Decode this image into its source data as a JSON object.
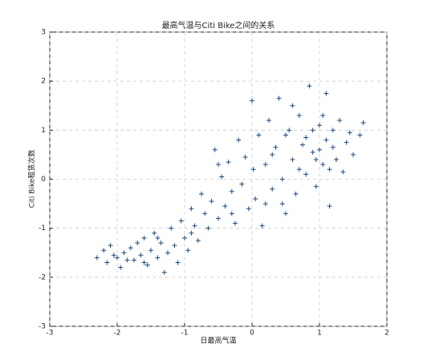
{
  "chart_data": {
    "type": "scatter",
    "title": "最高气温与Citi Bike之间的关系",
    "x_label": "日最高气温",
    "y_label": "Citi Bike租赁次数",
    "color": "#1f4a7a",
    "grid": true,
    "xlim": [
      -3,
      2
    ],
    "ylim": [
      -3,
      3
    ],
    "xticks": [
      -3,
      -2,
      -1,
      0,
      1,
      2
    ],
    "yticks": [
      -3,
      -2,
      -1,
      0,
      1,
      2,
      3
    ],
    "x": [
      -2.3,
      -2.2,
      -2.15,
      -2.1,
      -2.05,
      -1.95,
      -1.9,
      -1.85,
      -1.8,
      -1.75,
      -1.7,
      -1.65,
      -1.6,
      -1.55,
      -1.5,
      -1.45,
      -1.4,
      -1.35,
      -1.3,
      -1.25,
      -1.2,
      -1.15,
      -1.1,
      -1.05,
      -1.0,
      -0.95,
      -0.9,
      -0.85,
      -0.8,
      -0.75,
      -0.7,
      -0.65,
      -0.6,
      -0.55,
      -0.5,
      -0.45,
      -0.4,
      -0.35,
      -0.3,
      -0.25,
      -0.2,
      -0.15,
      -0.1,
      -0.05,
      0,
      0.02,
      0.05,
      0.1,
      0.15,
      0.2,
      0.25,
      0.3,
      0.35,
      0.4,
      0.45,
      0.5,
      0.55,
      0.6,
      0.65,
      0.7,
      0.75,
      0.8,
      0.85,
      0.9,
      0.95,
      1.0,
      1.05,
      1.1,
      1.15,
      1.2,
      1.25,
      1.3,
      1.35,
      1.4,
      1.45,
      1.5,
      1.6,
      1.65,
      0.9,
      1.0,
      1.05,
      0.8,
      1.15,
      0.95,
      1.2,
      0.7,
      0.6,
      0.5,
      0.3,
      0.2,
      -0.3,
      -0.5,
      -1.4,
      -0.9,
      -1.6,
      -2.0,
      1.1,
      0.45
    ],
    "values": [
      -1.6,
      -1.45,
      -1.7,
      -1.35,
      -1.55,
      -1.8,
      -1.5,
      -1.65,
      -1.4,
      -1.65,
      -1.3,
      -1.55,
      -1.2,
      -1.75,
      -1.45,
      -1.1,
      -1.6,
      -1.3,
      -1.9,
      -1.5,
      -1.0,
      -1.35,
      -1.7,
      -0.85,
      -1.2,
      -1.45,
      -0.6,
      -0.95,
      -1.25,
      -0.3,
      -0.7,
      -1.0,
      -0.45,
      0.6,
      -0.8,
      0.05,
      -0.55,
      0.35,
      -0.25,
      -0.9,
      0.8,
      -0.1,
      0.45,
      -0.6,
      1.6,
      0.2,
      -0.4,
      0.9,
      -0.95,
      0.3,
      1.2,
      -0.2,
      0.65,
      1.65,
      0.0,
      -0.7,
      1.0,
      0.4,
      -0.3,
      1.3,
      0.7,
      0.1,
      1.9,
      0.55,
      -0.15,
      1.1,
      0.3,
      0.8,
      -0.55,
      1.0,
      0.4,
      1.2,
      0.15,
      0.75,
      0.95,
      0.5,
      0.9,
      1.15,
      1.0,
      0.6,
      1.3,
      0.85,
      0.2,
      0.4,
      0.65,
      0.2,
      1.5,
      0.9,
      0.5,
      -0.5,
      -0.7,
      0.3,
      -1.2,
      -1.1,
      -1.7,
      -1.6,
      1.75,
      -0.5
    ]
  }
}
